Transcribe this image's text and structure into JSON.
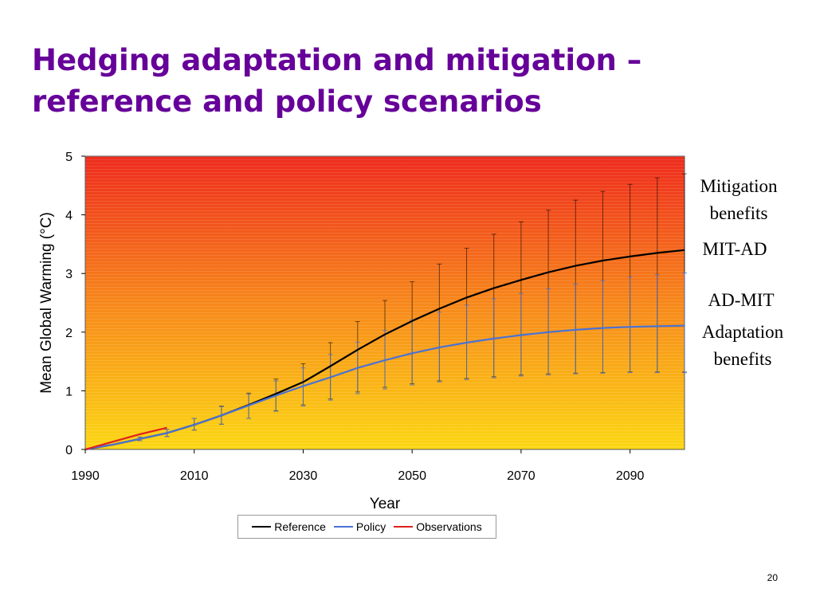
{
  "slide": {
    "title_line1": "Hedging adaptation and mitigation –",
    "title_line2": "reference and policy scenarios",
    "page_number": "20"
  },
  "annotations": {
    "mitigation_benefits": "Mitigation\nbenefits",
    "mit_ad": "MIT-AD",
    "ad_mit": "AD-MIT",
    "adaptation_benefits": "Adaptation\nbenefits"
  },
  "chart_data": {
    "type": "line",
    "xlabel": "Year",
    "ylabel": "Mean Global Warming (°C)",
    "xlim": [
      1990,
      2100
    ],
    "ylim": [
      0,
      5
    ],
    "xticks": [
      1990,
      2010,
      2030,
      2050,
      2070,
      2090
    ],
    "yticks": [
      0,
      1,
      2,
      3,
      4,
      5
    ],
    "grid": false,
    "legend_position": "bottom",
    "background": {
      "gradient_top": "#ee2a1c",
      "gradient_bottom": "#fcd713"
    },
    "series": [
      {
        "name": "Reference",
        "color": "#000000",
        "x": [
          1990,
          1995,
          2000,
          2005,
          2010,
          2015,
          2020,
          2025,
          2030,
          2035,
          2040,
          2045,
          2050,
          2055,
          2060,
          2065,
          2070,
          2075,
          2080,
          2085,
          2090,
          2095,
          2100
        ],
        "y": [
          0,
          0.08,
          0.18,
          0.28,
          0.42,
          0.58,
          0.76,
          0.95,
          1.15,
          1.42,
          1.7,
          1.96,
          2.19,
          2.4,
          2.59,
          2.75,
          2.89,
          3.02,
          3.13,
          3.22,
          3.29,
          3.35,
          3.4
        ],
        "error_low": [
          0,
          0.08,
          0.15,
          0.22,
          0.33,
          0.43,
          0.53,
          0.66,
          0.76,
          0.86,
          0.98,
          1.06,
          1.12,
          1.17,
          1.21,
          1.24,
          1.27,
          1.29,
          1.3,
          1.31,
          1.32,
          1.32,
          1.32
        ],
        "error_high": [
          0,
          0.08,
          0.21,
          0.34,
          0.53,
          0.74,
          0.96,
          1.2,
          1.46,
          1.82,
          2.18,
          2.54,
          2.86,
          3.16,
          3.43,
          3.67,
          3.88,
          4.08,
          4.25,
          4.4,
          4.52,
          4.63,
          4.7
        ]
      },
      {
        "name": "Policy",
        "color": "#4a72d4",
        "x": [
          1990,
          1995,
          2000,
          2005,
          2010,
          2015,
          2020,
          2025,
          2030,
          2035,
          2040,
          2045,
          2050,
          2055,
          2060,
          2065,
          2070,
          2075,
          2080,
          2085,
          2090,
          2095,
          2100
        ],
        "y": [
          0,
          0.08,
          0.18,
          0.28,
          0.42,
          0.58,
          0.75,
          0.92,
          1.08,
          1.23,
          1.39,
          1.52,
          1.64,
          1.74,
          1.82,
          1.89,
          1.95,
          2.0,
          2.04,
          2.07,
          2.09,
          2.1,
          2.11
        ],
        "error_low": [
          0,
          0.08,
          0.15,
          0.22,
          0.33,
          0.43,
          0.53,
          0.65,
          0.74,
          0.84,
          0.95,
          1.03,
          1.1,
          1.15,
          1.19,
          1.22,
          1.25,
          1.27,
          1.29,
          1.3,
          1.31,
          1.31,
          1.31
        ],
        "error_high": [
          0,
          0.08,
          0.21,
          0.34,
          0.53,
          0.73,
          0.94,
          1.17,
          1.39,
          1.62,
          1.83,
          2.03,
          2.21,
          2.34,
          2.46,
          2.57,
          2.66,
          2.74,
          2.82,
          2.88,
          2.94,
          2.98,
          3.01
        ]
      },
      {
        "name": "Observations",
        "color": "#e0201b",
        "x": [
          1990,
          1995,
          2000,
          2005
        ],
        "y": [
          0,
          0.13,
          0.26,
          0.37
        ]
      }
    ]
  }
}
